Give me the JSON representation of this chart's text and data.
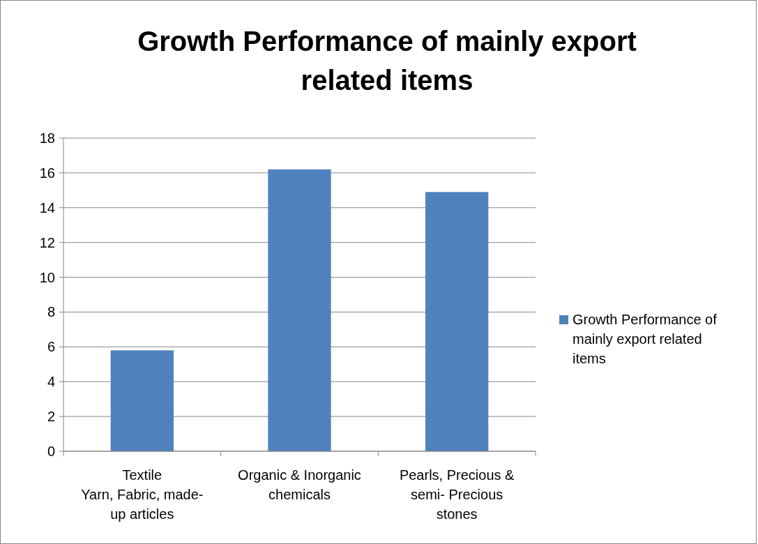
{
  "chart_data": {
    "type": "bar",
    "title": "Growth Performance of mainly export\nrelated items",
    "categories": [
      "Textile\nYarn, Fabric, made-\nup articles",
      "Organic & Inorganic\nchemicals",
      "Pearls, Precious &\nsemi- Precious\nstones"
    ],
    "series": [
      {
        "name": "Growth Performance of\nmainly export related\nitems",
        "color": "#4f81bd",
        "values": [
          5.8,
          16.2,
          14.9
        ]
      }
    ],
    "ylim": [
      0,
      18
    ],
    "yticks": [
      0,
      2,
      4,
      6,
      8,
      10,
      12,
      14,
      16,
      18
    ],
    "grid": "y",
    "legend": "right"
  }
}
